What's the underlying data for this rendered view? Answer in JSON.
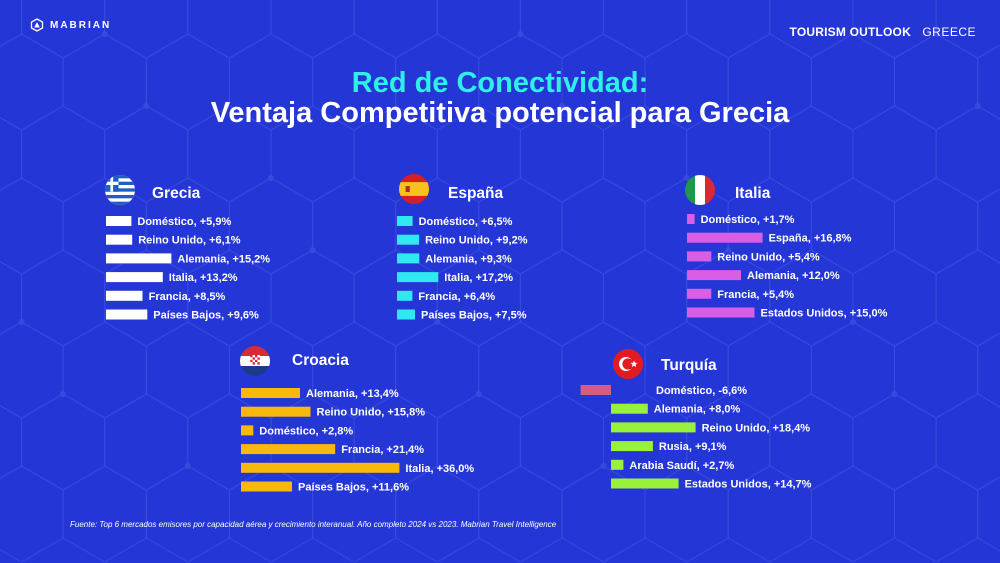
{
  "header": {
    "logo": "MABRIAN",
    "outlook": "TOURISM OUTLOOK",
    "country": "GREECE"
  },
  "title": {
    "line1": "Red de Conectividad:",
    "line2": "Ventaja Competitiva potencial para Grecia"
  },
  "footer": "Fuente:  Top 6 mercados emisores por capacidad aérea y crecimiento interanual. Año completo 2024 vs 2023. Mabrian Travel Intelligence",
  "colors": {
    "background": "#2536d6",
    "grecia": "#ffffff",
    "espana": "#2fe9ee",
    "italia": "#d95ee6",
    "croacia": "#f8b90c",
    "turquia_pos": "#99f23a",
    "turquia_neg": "#d45e7d"
  },
  "chart_data": [
    {
      "type": "bar",
      "country": "Grecia",
      "flag": "greece-flag",
      "categories": [
        "Doméstico",
        "Reino Unido",
        "Alemania",
        "Italia",
        "Francia",
        "Países Bajos"
      ],
      "values": [
        5.9,
        6.1,
        15.2,
        13.2,
        8.5,
        9.6
      ],
      "labels": [
        "Doméstico, +5,9%",
        "Reino Unido, +6,1%",
        "Alemania, +15,2%",
        "Italia, +13,2%",
        "Francia, +8,5%",
        "Países Bajos, +9,6%"
      ]
    },
    {
      "type": "bar",
      "country": "España",
      "flag": "spain-flag",
      "categories": [
        "Doméstico",
        "Reino Unido",
        "Alemania",
        "Italia",
        "Francia",
        "Países Bajos"
      ],
      "values": [
        6.5,
        9.2,
        9.3,
        17.2,
        6.4,
        7.5
      ],
      "labels": [
        "Doméstico, +6,5%",
        "Reino Unido, +9,2%",
        "Alemania, +9,3%",
        "Italia, +17,2%",
        "Francia, +6,4%",
        "Países Bajos, +7,5%"
      ]
    },
    {
      "type": "bar",
      "country": "Italia",
      "flag": "italy-flag",
      "categories": [
        "Doméstico",
        "España",
        "Reino Unido",
        "Alemania",
        "Francia",
        "Estados Unidos"
      ],
      "values": [
        1.7,
        16.8,
        5.4,
        12.0,
        5.4,
        15.0
      ],
      "labels": [
        "Doméstico, +1,7%",
        "España, +16,8%",
        "Reino Unido, +5,4%",
        "Alemania, +12,0%",
        "Francia, +5,4%",
        "Estados Unidos, +15,0%"
      ]
    },
    {
      "type": "bar",
      "country": "Croacia",
      "flag": "croatia-flag",
      "categories": [
        "Alemania",
        "Reino Unido",
        "Doméstico",
        "Francia",
        "Italia",
        "Países Bajos"
      ],
      "values": [
        13.4,
        15.8,
        2.8,
        21.4,
        36.0,
        11.6
      ],
      "labels": [
        "Alemania, +13,4%",
        "Reino Unido, +15,8%",
        "Doméstico, +2,8%",
        "Francia, +21,4%",
        "Italia, +36,0%",
        "Países Bajos, +11,6%"
      ]
    },
    {
      "type": "bar",
      "country": "Turquía",
      "flag": "turkey-flag",
      "categories": [
        "Doméstico",
        "Alemania",
        "Reino Unido",
        "Rusia",
        "Arabia Saudí",
        "Estados Unidos"
      ],
      "values": [
        -6.6,
        8.0,
        18.4,
        9.1,
        2.7,
        14.7
      ],
      "labels": [
        "Doméstico, -6,6%",
        "Alemania, +8,0%",
        "Reino Unido, +18,4%",
        "Rusia, +9,1%",
        "Arabia Saudí, +2,7%",
        "Estados Unidos, +14,7%"
      ]
    }
  ]
}
